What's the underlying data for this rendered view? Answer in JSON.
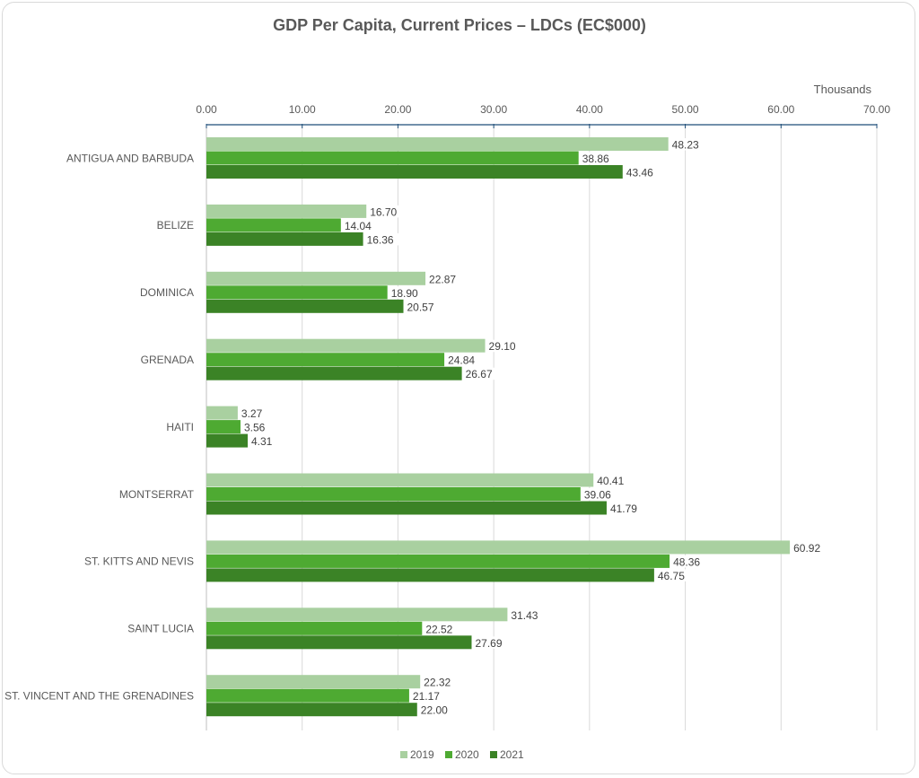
{
  "chart_data": {
    "type": "bar",
    "orientation": "horizontal",
    "title": "GDP Per Capita,  Current Prices – LDCs (EC$000)",
    "axis_units_label": "Thousands",
    "x_axis_position": "top",
    "xlim": [
      0,
      70
    ],
    "xticks": [
      "0.00",
      "10.00",
      "20.00",
      "30.00",
      "40.00",
      "50.00",
      "60.00",
      "70.00"
    ],
    "grid": true,
    "legend_position": "bottom",
    "categories": [
      "ANTIGUA AND BARBUDA",
      "BELIZE",
      "DOMINICA",
      "GRENADA",
      "HAITI",
      "MONTSERRAT",
      "ST. KITTS AND NEVIS",
      "SAINT LUCIA",
      "ST. VINCENT AND THE GRENADINES"
    ],
    "series": [
      {
        "name": "2019",
        "color": "#a9d0a0",
        "values": [
          48.23,
          16.7,
          22.87,
          29.1,
          3.27,
          40.41,
          60.92,
          31.43,
          22.32
        ],
        "labels": [
          "48.23",
          "16.70",
          "22.87",
          "29.10",
          "3.27",
          "40.41",
          "60.92",
          "31.43",
          "22.32"
        ]
      },
      {
        "name": "2020",
        "color": "#4eaa32",
        "values": [
          38.86,
          14.04,
          18.9,
          24.84,
          3.56,
          39.06,
          48.36,
          22.52,
          21.17
        ],
        "labels": [
          "38.86",
          "14.04",
          "18.90",
          "24.84",
          "3.56",
          "39.06",
          "48.36",
          "22.52",
          "21.17"
        ]
      },
      {
        "name": "2021",
        "color": "#3b8326",
        "values": [
          43.46,
          16.36,
          20.57,
          26.67,
          4.31,
          41.79,
          46.75,
          27.69,
          22.0
        ],
        "labels": [
          "43.46",
          "16.36",
          "20.57",
          "26.67",
          "4.31",
          "41.79",
          "46.75",
          "27.69",
          "22.00"
        ]
      }
    ]
  }
}
